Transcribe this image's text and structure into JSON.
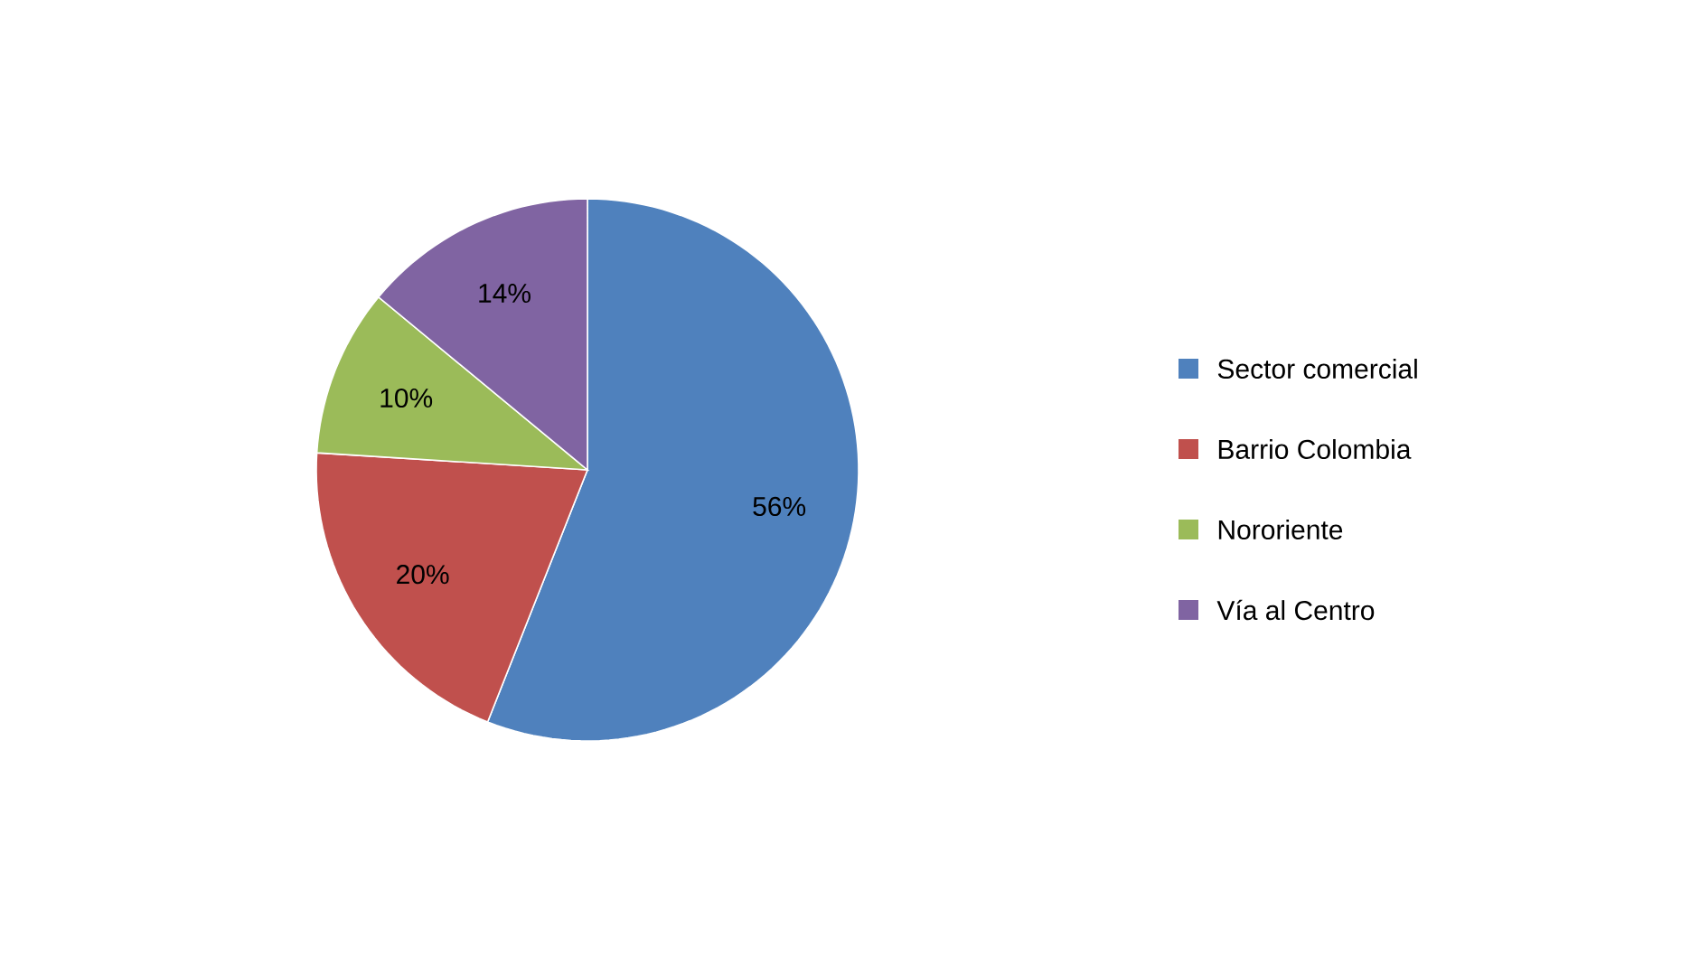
{
  "chart_data": {
    "type": "pie",
    "categories": [
      "Sector comercial",
      "Barrio Colombia",
      "Nororiente",
      "Vía al Centro"
    ],
    "values": [
      56,
      20,
      10,
      14
    ],
    "value_labels": [
      "56%",
      "20%",
      "10%",
      "14%"
    ],
    "colors": [
      "#4f81bd",
      "#c0504d",
      "#9bbb59",
      "#8064a2"
    ],
    "legend": "right"
  }
}
